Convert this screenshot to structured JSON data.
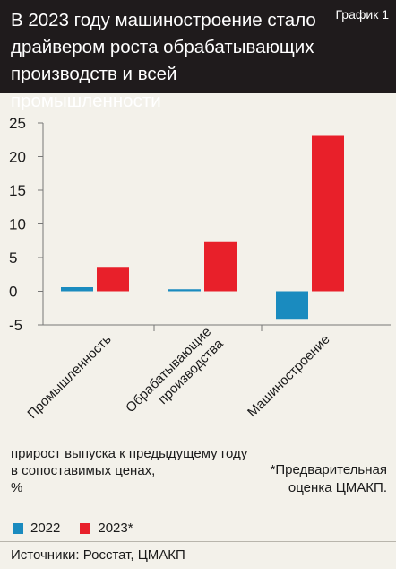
{
  "header": {
    "title": "В 2023 году машиностроение стало драйвером роста обрабатывающих производств и всей промышленности",
    "grafik_label": "График 1"
  },
  "chart_data": {
    "type": "bar",
    "categories": [
      "Промышленность",
      "Обрабатывающие производства",
      "Машиностроение"
    ],
    "category_lines": [
      [
        "Промышленность"
      ],
      [
        "Обрабатывающие",
        "производства"
      ],
      [
        "Машиностроение"
      ]
    ],
    "series": [
      {
        "name": "2022",
        "color": "#1a8bbf",
        "values": [
          0.6,
          0.3,
          -4.1
        ]
      },
      {
        "name": "2023*",
        "color": "#e8202a",
        "values": [
          3.5,
          7.3,
          23.2
        ]
      }
    ],
    "ylim": [
      -5,
      25
    ],
    "yticks": [
      -5,
      0,
      5,
      10,
      15,
      20,
      25
    ],
    "ytick_labels": [
      "-5",
      "0",
      "5",
      "10",
      "15",
      "20",
      "25"
    ]
  },
  "notes": {
    "unit_line1": "прирост выпуска к предыдущему году",
    "unit_line2": "в сопоставимых ценах,",
    "unit_line3": "%",
    "footnote_line1": "*Предварительная",
    "footnote_line2": "оценка ЦМАКП."
  },
  "legend": {
    "items": [
      {
        "label": "2022",
        "color": "#1a8bbf"
      },
      {
        "label": "2023*",
        "color": "#e8202a"
      }
    ]
  },
  "source": "Источники: Росстат, ЦМАКП"
}
